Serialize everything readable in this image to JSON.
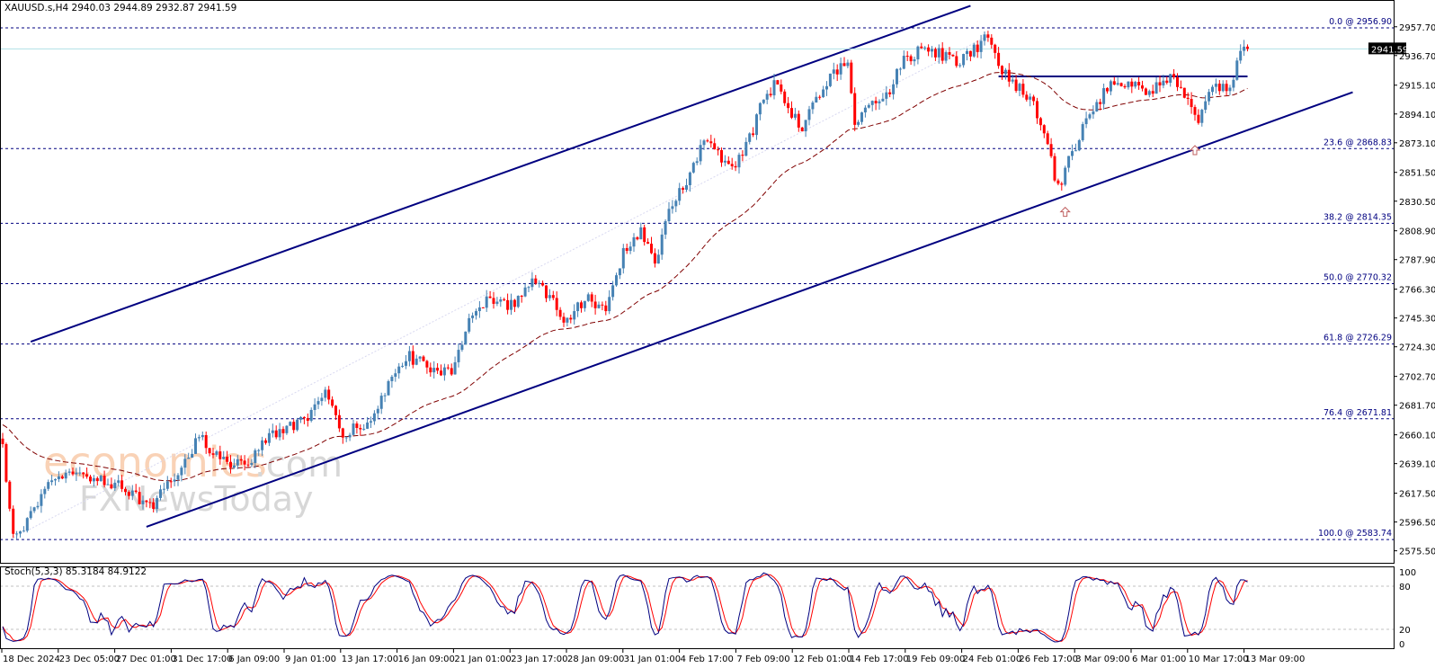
{
  "header": {
    "title": "XAUUSD.s,H4  2940.03 2944.89 2932.87 2941.59"
  },
  "stoch_header": {
    "title": "Stoch(5,3,3) 85.3184 84.9122"
  },
  "watermark": {
    "brand1": "economies",
    "brand1_suffix": ".com",
    "brand2": "FXNewsToday"
  },
  "colors": {
    "bull": "#4682B4",
    "bear": "#FF0000",
    "ma": "#800000",
    "fib": "#000080",
    "channel": "#000080",
    "price_line": "#B0E0E6",
    "stoch_main": "#000080",
    "stoch_signal": "#FF0000"
  },
  "chart_data": {
    "type": "candlestick",
    "symbol": "XAUUSD.s",
    "timeframe": "H4",
    "last_price": "2941.59",
    "ylim": [
      2575.5,
      2957.7
    ],
    "y_ticks": [
      "2957.70",
      "2936.70",
      "2915.10",
      "2894.10",
      "2873.10",
      "2851.50",
      "2830.50",
      "2808.90",
      "2787.90",
      "2766.30",
      "2745.30",
      "2724.30",
      "2702.70",
      "2681.70",
      "2660.10",
      "2639.10",
      "2617.50",
      "2596.50",
      "2575.50"
    ],
    "x_ticks": [
      "18 Dec 2024",
      "23 Dec 05:00",
      "27 Dec 01:00",
      "31 Dec 17:00",
      "6 Jan 09:00",
      "9 Jan 01:00",
      "13 Jan 17:00",
      "16 Jan 09:00",
      "21 Jan 01:00",
      "23 Jan 17:00",
      "28 Jan 09:00",
      "31 Jan 01:00",
      "4 Feb 17:00",
      "7 Feb 09:00",
      "12 Feb 01:00",
      "14 Feb 17:00",
      "19 Feb 09:00",
      "24 Feb 01:00",
      "26 Feb 17:00",
      "3 Mar 09:00",
      "6 Mar 01:00",
      "10 Mar 17:00",
      "13 Mar 09:00"
    ],
    "bars": 356,
    "price_path": [
      [
        0,
        2649
      ],
      [
        3,
        2585
      ],
      [
        8,
        2600
      ],
      [
        15,
        2630
      ],
      [
        26,
        2630
      ],
      [
        36,
        2620
      ],
      [
        42,
        2607
      ],
      [
        51,
        2636
      ],
      [
        56,
        2659
      ],
      [
        62,
        2643
      ],
      [
        69,
        2636
      ],
      [
        74,
        2656
      ],
      [
        85,
        2669
      ],
      [
        92,
        2689
      ],
      [
        97,
        2659
      ],
      [
        105,
        2672
      ],
      [
        115,
        2718
      ],
      [
        123,
        2708
      ],
      [
        128,
        2708
      ],
      [
        133,
        2741
      ],
      [
        138,
        2757
      ],
      [
        146,
        2754
      ],
      [
        151,
        2777
      ],
      [
        156,
        2761
      ],
      [
        160,
        2741
      ],
      [
        167,
        2761
      ],
      [
        172,
        2748
      ],
      [
        177,
        2794
      ],
      [
        182,
        2810
      ],
      [
        186,
        2781
      ],
      [
        190,
        2826
      ],
      [
        195,
        2846
      ],
      [
        200,
        2876
      ],
      [
        205,
        2863
      ],
      [
        209,
        2859
      ],
      [
        213,
        2876
      ],
      [
        217,
        2905
      ],
      [
        221,
        2918
      ],
      [
        224,
        2899
      ],
      [
        228,
        2885
      ],
      [
        232,
        2905
      ],
      [
        237,
        2925
      ],
      [
        241,
        2931
      ],
      [
        243,
        2885
      ],
      [
        247,
        2899
      ],
      [
        253,
        2912
      ],
      [
        256,
        2931
      ],
      [
        262,
        2941
      ],
      [
        267,
        2938
      ],
      [
        272,
        2931
      ],
      [
        277,
        2941
      ],
      [
        281,
        2951
      ],
      [
        285,
        2925
      ],
      [
        290,
        2912
      ],
      [
        294,
        2899
      ],
      [
        297,
        2879
      ],
      [
        301,
        2840
      ],
      [
        304,
        2859
      ],
      [
        308,
        2885
      ],
      [
        312,
        2899
      ],
      [
        315,
        2915
      ],
      [
        321,
        2918
      ],
      [
        326,
        2912
      ],
      [
        331,
        2915
      ],
      [
        333,
        2925
      ],
      [
        337,
        2905
      ],
      [
        341,
        2889
      ],
      [
        345,
        2912
      ],
      [
        350,
        2915
      ],
      [
        353,
        2938
      ],
      [
        355,
        2941.59
      ]
    ],
    "fib_levels": [
      {
        "label": "0.0 @ 2956.90",
        "price": 2956.9
      },
      {
        "label": "23.6 @ 2868.83",
        "price": 2868.83
      },
      {
        "label": "38.2 @ 2814.35",
        "price": 2814.35
      },
      {
        "label": "50.0 @ 2770.32",
        "price": 2770.32
      },
      {
        "label": "61.8 @ 2726.29",
        "price": 2726.29
      },
      {
        "label": "76.4 @ 2671.81",
        "price": 2671.81
      },
      {
        "label": "100.0 @ 2583.74",
        "price": 2583.74
      }
    ],
    "trendlines": [
      {
        "name": "channel-upper",
        "from": [
          8,
          2728
        ],
        "to": [
          276,
          2973
        ]
      },
      {
        "name": "channel-lower",
        "from": [
          41,
          2593
        ],
        "to": [
          385,
          2910
        ]
      },
      {
        "name": "resistance",
        "from": [
          284,
          2921.5
        ],
        "to": [
          355,
          2921.5
        ]
      },
      {
        "name": "fib-trend",
        "from": [
          3,
          2585
        ],
        "to": [
          281,
          2951
        ]
      }
    ],
    "arrows": [
      [
        303,
        2826
      ],
      [
        340,
        2871
      ]
    ],
    "ma_type": "moving-average",
    "stoch": {
      "params": "5,3,3",
      "main": 85.3184,
      "signal": 84.9122,
      "levels": [
        20,
        80
      ],
      "y_ticks": [
        "100",
        "80",
        "20",
        "0"
      ]
    }
  }
}
